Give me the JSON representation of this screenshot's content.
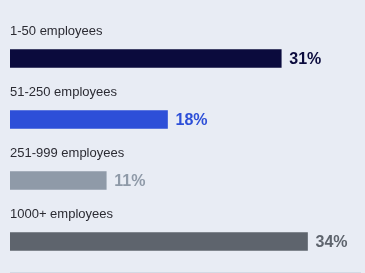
{
  "chart_data": {
    "type": "bar",
    "orientation": "horizontal",
    "categories": [
      "1-50 employees",
      "51-250 employees",
      "251-999 employees",
      "1000+ employees"
    ],
    "values": [
      31,
      18,
      11,
      34
    ],
    "value_labels": [
      "31%",
      "18%",
      "11%",
      "34%"
    ],
    "colors": [
      "#0b0b3d",
      "#2d4fd8",
      "#8f9aa8",
      "#5e646d"
    ],
    "xlim": [
      0,
      40
    ],
    "grid": false,
    "data_labels": true,
    "tick_labels": false
  }
}
